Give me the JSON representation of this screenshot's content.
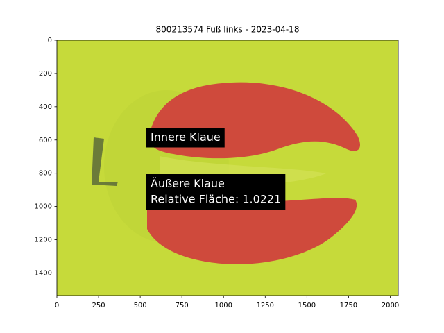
{
  "chart_data": {
    "type": "image",
    "title": "800213574 Fuß links - 2023-04-18",
    "xlim": [
      0,
      2048
    ],
    "ylim": [
      1536,
      0
    ],
    "xticks": [
      0,
      250,
      500,
      750,
      1000,
      1250,
      1500,
      1750,
      2000
    ],
    "yticks": [
      0,
      200,
      400,
      600,
      800,
      1000,
      1200,
      1400
    ],
    "annotations": [
      {
        "lines": [
          "Innere Klaue"
        ]
      },
      {
        "lines": [
          "Äußere Klaue",
          "Relative Fläche: 1.0221"
        ]
      }
    ]
  }
}
